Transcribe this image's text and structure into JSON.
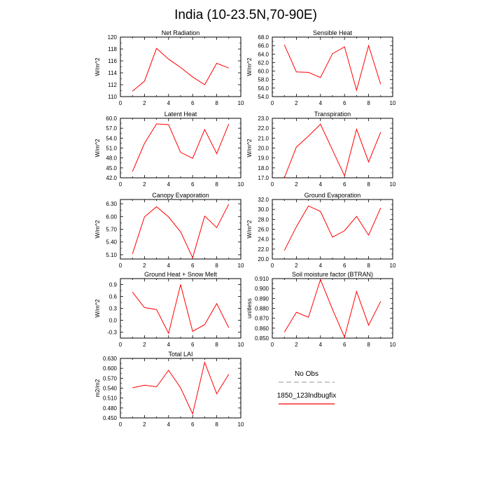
{
  "figure": {
    "title": "India (10-23.5N,70-90E)",
    "legend": {
      "items": [
        {
          "label": "No Obs",
          "color": "#aaaaaa",
          "style": "dashed"
        },
        {
          "label": "1850_123lndbugfix",
          "color": "#ff0000",
          "style": "solid"
        }
      ]
    }
  },
  "chart_data": [
    {
      "type": "line",
      "title": "Net Radiation",
      "ylabel": "W/m^2",
      "xlim": [
        0,
        10
      ],
      "ylim": [
        110,
        120
      ],
      "xticks": [
        0,
        2,
        4,
        6,
        8,
        10
      ],
      "yticks": [
        "110",
        "112",
        "114",
        "116",
        "118",
        "120"
      ],
      "x": [
        1,
        2,
        3,
        4,
        5,
        6,
        7,
        8,
        9
      ],
      "series": [
        {
          "name": "1850_123lndbugfix",
          "color": "#ff0000",
          "values": [
            110.9,
            112.6,
            118.1,
            116.3,
            114.9,
            113.3,
            112.0,
            115.6,
            114.8
          ]
        }
      ]
    },
    {
      "type": "line",
      "title": "Sensible Heat",
      "ylabel": "W/m^2",
      "xlim": [
        0,
        10
      ],
      "ylim": [
        54,
        68
      ],
      "xticks": [
        0,
        2,
        4,
        6,
        8,
        10
      ],
      "yticks": [
        "54.0",
        "56.0",
        "58.0",
        "60.0",
        "62.0",
        "64.0",
        "66.0",
        "68.0"
      ],
      "x": [
        1,
        2,
        3,
        4,
        5,
        6,
        7,
        8,
        9
      ],
      "series": [
        {
          "name": "1850_123lndbugfix",
          "color": "#ff0000",
          "values": [
            66.2,
            59.8,
            59.7,
            58.5,
            64.1,
            65.7,
            55.5,
            66.0,
            56.9
          ]
        }
      ]
    },
    {
      "type": "line",
      "title": "Latent Heat",
      "ylabel": "W/m^2",
      "xlim": [
        0,
        10
      ],
      "ylim": [
        42,
        60
      ],
      "xticks": [
        0,
        2,
        4,
        6,
        8,
        10
      ],
      "yticks": [
        "42.0",
        "45.0",
        "48.0",
        "51.0",
        "54.0",
        "57.0",
        "60.0"
      ],
      "x": [
        1,
        2,
        3,
        4,
        5,
        6,
        7,
        8,
        9
      ],
      "series": [
        {
          "name": "1850_123lndbugfix",
          "color": "#ff0000",
          "values": [
            43.9,
            52.4,
            58.3,
            58.1,
            49.7,
            47.9,
            56.6,
            49.3,
            58.3
          ]
        }
      ]
    },
    {
      "type": "line",
      "title": "Transpiration",
      "ylabel": "W/m^2",
      "xlim": [
        0,
        10
      ],
      "ylim": [
        17,
        23
      ],
      "xticks": [
        0,
        2,
        4,
        6,
        8,
        10
      ],
      "yticks": [
        "17.0",
        "18.0",
        "19.0",
        "20.0",
        "21.0",
        "22.0",
        "23.0"
      ],
      "x": [
        1,
        2,
        3,
        4,
        5,
        6,
        7,
        8,
        9
      ],
      "series": [
        {
          "name": "1850_123lndbugfix",
          "color": "#ff0000",
          "values": [
            17.0,
            20.1,
            21.2,
            22.4,
            19.8,
            17.2,
            21.9,
            18.6,
            21.6
          ]
        }
      ]
    },
    {
      "type": "line",
      "title": "Canopy Evaporation",
      "ylabel": "W/m^2",
      "xlim": [
        0,
        10
      ],
      "ylim": [
        5.0,
        6.4
      ],
      "xticks": [
        0,
        2,
        4,
        6,
        8,
        10
      ],
      "yticks": [
        "5.10",
        "5.40",
        "5.70",
        "6.00",
        "6.30"
      ],
      "x": [
        1,
        2,
        3,
        4,
        5,
        6,
        7,
        8,
        9
      ],
      "series": [
        {
          "name": "1850_123lndbugfix",
          "color": "#ff0000",
          "values": [
            5.12,
            5.99,
            6.23,
            5.99,
            5.64,
            5.03,
            6.01,
            5.74,
            6.29
          ]
        }
      ]
    },
    {
      "type": "line",
      "title": "Ground Evaporation",
      "ylabel": "W/m^2",
      "xlim": [
        0,
        10
      ],
      "ylim": [
        20,
        32
      ],
      "xticks": [
        0,
        2,
        4,
        6,
        8,
        10
      ],
      "yticks": [
        "20.0",
        "22.0",
        "24.0",
        "26.0",
        "28.0",
        "30.0",
        "32.0"
      ],
      "x": [
        1,
        2,
        3,
        4,
        5,
        6,
        7,
        8,
        9
      ],
      "series": [
        {
          "name": "1850_123lndbugfix",
          "color": "#ff0000",
          "values": [
            21.7,
            26.5,
            30.7,
            29.6,
            24.4,
            25.7,
            28.6,
            24.8,
            30.3
          ]
        }
      ]
    },
    {
      "type": "line",
      "title": "Ground Heat + Snow Melt",
      "ylabel": "W/m^2",
      "xlim": [
        0,
        10
      ],
      "ylim": [
        -0.45,
        1.05
      ],
      "xticks": [
        0,
        2,
        4,
        6,
        8,
        10
      ],
      "yticks": [
        "-0.3",
        "0.0",
        "0.3",
        "0.6",
        "0.9"
      ],
      "x": [
        1,
        2,
        3,
        4,
        5,
        6,
        7,
        8,
        9
      ],
      "series": [
        {
          "name": "1850_123lndbugfix",
          "color": "#ff0000",
          "values": [
            0.71,
            0.32,
            0.27,
            -0.33,
            0.9,
            -0.28,
            -0.11,
            0.42,
            -0.19
          ]
        }
      ]
    },
    {
      "type": "line",
      "title": "Soil moisture factor (BTRAN)",
      "ylabel": "unitless",
      "xlim": [
        0,
        10
      ],
      "ylim": [
        0.85,
        0.91
      ],
      "xticks": [
        0,
        2,
        4,
        6,
        8,
        10
      ],
      "yticks": [
        "0.850",
        "0.860",
        "0.870",
        "0.880",
        "0.890",
        "0.900",
        "0.910"
      ],
      "x": [
        1,
        2,
        3,
        4,
        5,
        6,
        7,
        8,
        9
      ],
      "series": [
        {
          "name": "1850_123lndbugfix",
          "color": "#ff0000",
          "values": [
            0.856,
            0.876,
            0.871,
            0.909,
            0.879,
            0.851,
            0.897,
            0.863,
            0.887
          ]
        }
      ]
    },
    {
      "type": "line",
      "title": "Total LAI",
      "ylabel": "m2/m2",
      "xlim": [
        0,
        10
      ],
      "ylim": [
        0.45,
        0.63
      ],
      "xticks": [
        0,
        2,
        4,
        6,
        8,
        10
      ],
      "yticks": [
        "0.450",
        "0.480",
        "0.510",
        "0.540",
        "0.570",
        "0.600",
        "0.630"
      ],
      "x": [
        1,
        2,
        3,
        4,
        5,
        6,
        7,
        8,
        9
      ],
      "series": [
        {
          "name": "1850_123lndbugfix",
          "color": "#ff0000",
          "values": [
            0.541,
            0.549,
            0.544,
            0.594,
            0.541,
            0.462,
            0.618,
            0.523,
            0.582
          ]
        }
      ]
    }
  ]
}
